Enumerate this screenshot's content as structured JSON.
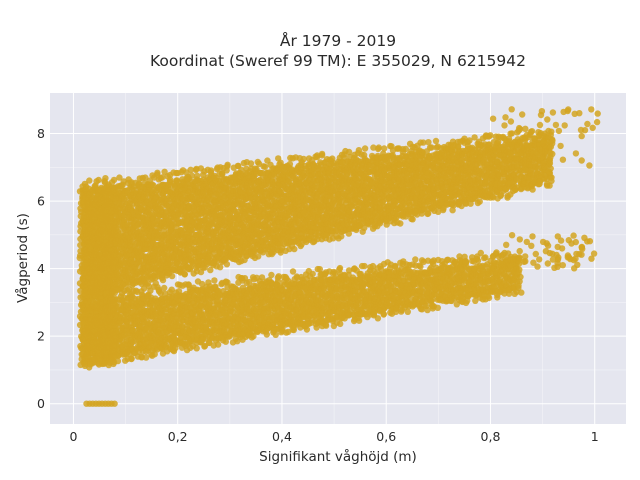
{
  "chart_data": {
    "type": "scatter",
    "title_lines": [
      "År 1979 - 2019",
      "Koordinat (Sweref 99 TM): E 355029, N 6215942"
    ],
    "xlabel": "Signifikant våghöjd (m)",
    "ylabel": "Vågperiod (s)",
    "xlim": [
      -0.045,
      1.06
    ],
    "ylim": [
      -0.6,
      9.2
    ],
    "x_ticks": [
      0,
      0.2,
      0.4,
      0.6,
      0.8,
      1
    ],
    "x_tick_labels": [
      "0",
      "0,2",
      "0,4",
      "0,6",
      "0,8",
      "1"
    ],
    "y_ticks": [
      0,
      2,
      4,
      6,
      8
    ],
    "y_tick_labels": [
      "0",
      "2",
      "4",
      "6",
      "8"
    ],
    "grid": true,
    "background_color": "#e5e6ef",
    "series": [
      {
        "color": "#d4a421",
        "clusters": [
          {
            "kind": "band",
            "x_range": [
              0.02,
              0.92
            ],
            "y_low_start": 3.3,
            "y_low_end": 6.7,
            "y_high_start": 6.3,
            "y_high_end": 7.9
          },
          {
            "kind": "band",
            "x_range": [
              0.02,
              0.86
            ],
            "y_low_start": 1.3,
            "y_low_end": 3.5,
            "y_high_start": 3.0,
            "y_high_end": 4.3
          },
          {
            "kind": "column",
            "x_range": [
              0.015,
              0.08
            ],
            "y_range": [
              1.2,
              6.5
            ]
          },
          {
            "kind": "sparse",
            "x_range": [
              0.8,
              1.01
            ],
            "y_range": [
              7.0,
              8.8
            ]
          },
          {
            "kind": "sparse",
            "x_range": [
              0.82,
              1.0
            ],
            "y_range": [
              4.0,
              5.0
            ]
          },
          {
            "kind": "zero_row",
            "x_range": [
              0.025,
              0.08
            ],
            "y": 0
          }
        ]
      }
    ]
  }
}
